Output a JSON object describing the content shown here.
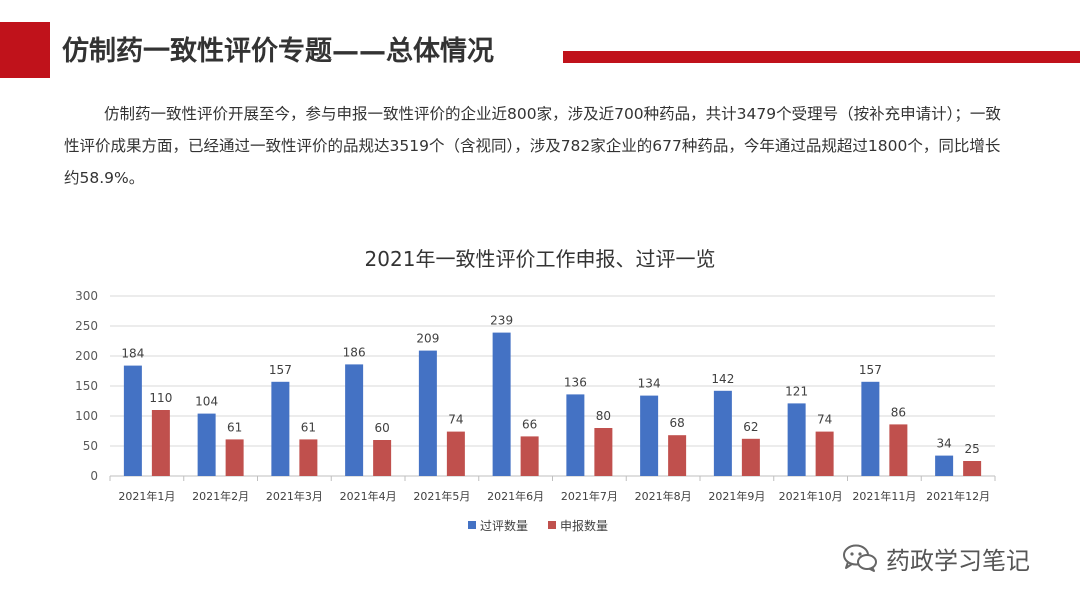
{
  "slide": {
    "title": "仿制药一致性评价专题——总体情况",
    "intro": "仿制药一致性评价开展至今，参与申报一致性评价的企业近800家，涉及近700种药品，共计3479个受理号（按补充申请计）；一致性评价成果方面，已经通过一致性评价的品规达3519个（含视同），涉及782家企业的677种药品，今年通过品规超过1800个，同比增长约58.9%。",
    "watermark": "药政学习笔记"
  },
  "colors": {
    "accent": "#c0121b",
    "series_pass": "#4472c4",
    "series_apply": "#c0504d"
  },
  "chart_data": {
    "type": "bar",
    "title": "2021年一致性评价工作申报、过评一览",
    "xlabel": "",
    "ylabel": "",
    "ylim": [
      0,
      300
    ],
    "yticks": [
      0,
      50,
      100,
      150,
      200,
      250,
      300
    ],
    "grid": true,
    "legend_position": "bottom",
    "categories": [
      "2021年1月",
      "2021年2月",
      "2021年3月",
      "2021年4月",
      "2021年5月",
      "2021年6月",
      "2021年7月",
      "2021年8月",
      "2021年9月",
      "2021年10月",
      "2021年11月",
      "2021年12月"
    ],
    "series": [
      {
        "name": "过评数量",
        "color": "#4472c4",
        "values": [
          184,
          104,
          157,
          186,
          209,
          239,
          136,
          134,
          142,
          121,
          157,
          34
        ]
      },
      {
        "name": "申报数量",
        "color": "#c0504d",
        "values": [
          110,
          61,
          61,
          60,
          74,
          66,
          80,
          68,
          62,
          74,
          86,
          25
        ]
      }
    ]
  }
}
